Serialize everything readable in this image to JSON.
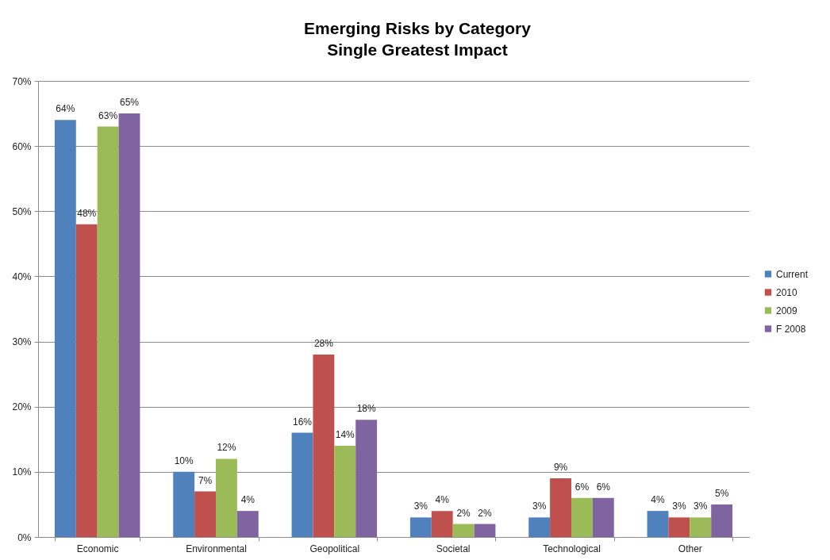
{
  "chart_data": {
    "type": "bar",
    "title": "Emerging Risks by Category",
    "subtitle": "Single Greatest Impact",
    "categories": [
      "Economic",
      "Environmental",
      "Geopolitical",
      "Societal",
      "Technological",
      "Other"
    ],
    "series": [
      {
        "name": "Current",
        "color": "#4f81bd",
        "values": [
          64,
          10,
          16,
          3,
          3,
          4
        ],
        "value_labels": [
          "64%",
          "10%",
          "16%",
          "3%",
          "3%",
          "4%"
        ]
      },
      {
        "name": "2010",
        "color": "#c0504d",
        "values": [
          48,
          7,
          28,
          4,
          9,
          3
        ],
        "value_labels": [
          "48%",
          "7%",
          "28%",
          "4%",
          "9%",
          "3%"
        ]
      },
      {
        "name": "2009",
        "color": "#9bbb59",
        "values": [
          63,
          12,
          14,
          2,
          6,
          3
        ],
        "value_labels": [
          "63%",
          "12%",
          "14%",
          "2%",
          "6%",
          "3%"
        ]
      },
      {
        "name": "F 2008",
        "color": "#8064a2",
        "values": [
          65,
          4,
          18,
          2,
          6,
          5
        ],
        "value_labels": [
          "65%",
          "4%",
          "18%",
          "2%",
          "6%",
          "5%"
        ]
      }
    ],
    "ylim": [
      0,
      70
    ],
    "yticks": [
      {
        "value": 0,
        "label": "0%"
      },
      {
        "value": 10,
        "label": "10%"
      },
      {
        "value": 20,
        "label": "20%"
      },
      {
        "value": 30,
        "label": "30%"
      },
      {
        "value": 40,
        "label": "40%"
      },
      {
        "value": 50,
        "label": "50%"
      },
      {
        "value": 60,
        "label": "60%"
      },
      {
        "value": 70,
        "label": "70%"
      }
    ],
    "grid": "y",
    "legend": "right"
  }
}
